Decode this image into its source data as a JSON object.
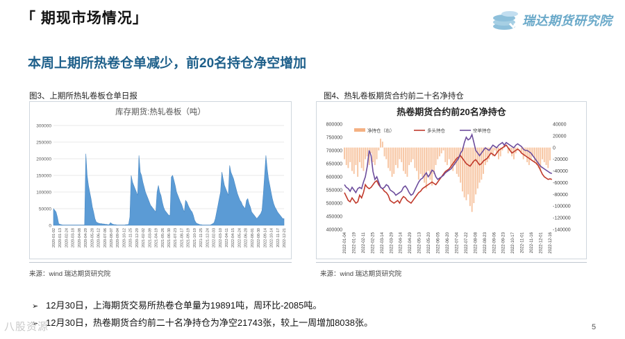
{
  "header": {
    "title": "「 期现市场情况」"
  },
  "logo": {
    "text": "瑞达期货研究院",
    "icon": "coin-stack-logo-icon"
  },
  "subtitle": "本周上期所热卷仓单减少，前20名持仓净空增加",
  "figure3": {
    "label": "图3、上期所热轧卷板仓单日报",
    "source": "来源：wind    瑞达期货研究院",
    "chart_data": {
      "type": "area",
      "title": "库存期货:热轧卷板（吨）",
      "ylim": [
        0,
        300000
      ],
      "yticks": [
        "300000",
        "250000",
        "200000",
        "150000",
        "100000",
        "50000",
        "0"
      ],
      "xticks": [
        "2020-01-02",
        "2020-01-13",
        "2020-02-24",
        "2020-03-18",
        "2020-04-08",
        "2020-04-29",
        "2020-05-28",
        "2020-06-12",
        "2020-07-06",
        "2020-08-07",
        "2020-09-04",
        "2020-10-12",
        "2020-11-25",
        "2020-12-29",
        "2021-02-02",
        "2021-03-09",
        "2021-04-19",
        "2021-05-26",
        "2021-06-30",
        "2021-07-23",
        "2021-08-17",
        "2021-09-19",
        "2021-10-19",
        "2021-11-25",
        "2021-12-24",
        "2022-02-03",
        "2022-03-10",
        "2022-04-11",
        "2022-04-15",
        "2022-05-24",
        "2022-06-28",
        "2022-08-01",
        "2022-08-30",
        "2022-09-14",
        "2022-10-14",
        "2022-11-17",
        "2022-12-21"
      ],
      "color": "#5b9bd5",
      "values": [
        50000,
        45000,
        40000,
        25000,
        5000,
        3000,
        2000,
        1000,
        1000,
        1000,
        1000,
        1000,
        1000,
        1000,
        1000,
        1000,
        1000,
        1000,
        1000,
        1000,
        1000,
        1000,
        1000,
        1000,
        1000,
        215000,
        150000,
        120000,
        100000,
        80000,
        55000,
        40000,
        20000,
        10000,
        8000,
        6000,
        5000,
        5000,
        4000,
        4000,
        3000,
        3000,
        2000,
        2000,
        8000,
        5000,
        3000,
        2000,
        2000,
        1000,
        1000,
        1000,
        1000,
        1000,
        1000,
        1000,
        2000,
        2000,
        3000,
        25000,
        150000,
        130000,
        120000,
        110000,
        100000,
        90000,
        210000,
        160000,
        150000,
        130000,
        115000,
        100000,
        90000,
        80000,
        70000,
        60000,
        55000,
        50000,
        45000,
        40000,
        100000,
        120000,
        100000,
        90000,
        70000,
        55000,
        45000,
        40000,
        35000,
        30000,
        30000,
        145000,
        150000,
        135000,
        120000,
        100000,
        90000,
        80000,
        70000,
        62000,
        50000,
        40000,
        75000,
        70000,
        60000,
        52000,
        45000,
        40000,
        30000,
        15000,
        8000,
        5000,
        4000,
        2000,
        2000,
        1000,
        1000,
        1000,
        1000,
        1000,
        1000,
        1000,
        3000,
        5000,
        8000,
        20000,
        40000,
        60000,
        80000,
        100000,
        160000,
        140000,
        120000,
        110000,
        100000,
        90000,
        180000,
        160000,
        150000,
        140000,
        125000,
        110000,
        95000,
        85000,
        75000,
        70000,
        60000,
        55000,
        50000,
        75000,
        80000,
        65000,
        55000,
        40000,
        35000,
        30000,
        25000,
        20000,
        25000,
        30000,
        35000,
        45000,
        95000,
        150000,
        210000,
        170000,
        140000,
        120000,
        100000,
        80000,
        65000,
        55000,
        48000,
        40000,
        35000,
        30000,
        25000,
        20000,
        20000
      ]
    }
  },
  "figure4": {
    "label": "图4、热轧卷板期货合约前二十名净持仓",
    "source": "来源：wind    瑞达期货研究院",
    "chart_data": {
      "type": "line",
      "title": "热卷期货合约前20名净持仓",
      "ylim_left": [
        400000,
        800000
      ],
      "ylim_right": [
        -140000,
        40000
      ],
      "yticks_left": [
        "800000",
        "750000",
        "700000",
        "650000",
        "600000",
        "550000",
        "500000",
        "450000",
        "400000"
      ],
      "yticks_right": [
        "40000",
        "20000",
        "0",
        "-20000",
        "-40000",
        "-60000",
        "-80000",
        "-100000",
        "-120000",
        "-140000"
      ],
      "xticks": [
        "2022-01-04",
        "2022-01-19",
        "2022-02-11",
        "2022-02-25",
        "2022-03-14",
        "2022-03-29",
        "2022-04-14",
        "2022-04-29",
        "2022-05-13",
        "2022-05-20",
        "2022-06-05",
        "2022-06-20",
        "2022-07-04",
        "2022-07-22",
        "2022-08-08",
        "2022-08-23",
        "2022-09-06",
        "2022-09-23",
        "2022-10-17",
        "2022-11-01",
        "2022-11-16",
        "2022-12-01",
        "2022-12-16"
      ],
      "legend": [
        "净持仓（右）",
        "多头持仓",
        "空单持仓"
      ],
      "series": [
        {
          "name": "净持仓（右）",
          "color": "#f4b183",
          "values": [
            -20000,
            -30000,
            -35000,
            -25000,
            -40000,
            -45000,
            -30000,
            -50000,
            -25000,
            -35000,
            -40000,
            -20000,
            -15000,
            -30000,
            -10000,
            -25000,
            -30000,
            -20000,
            -5000,
            15000,
            10000,
            -15000,
            -20000,
            -35000,
            -40000,
            -50000,
            -45000,
            -30000,
            -35000,
            -20000,
            -25000,
            -40000,
            -45000,
            -50000,
            -30000,
            -25000,
            -20000,
            -35000,
            -40000,
            -55000,
            -45000,
            -50000,
            -60000,
            -70000,
            -40000,
            -55000,
            -65000,
            -45000,
            -30000,
            -20000,
            -15000,
            -10000,
            -5000,
            -25000,
            -30000,
            -20000,
            -35000,
            -40000,
            -30000,
            -45000,
            -50000,
            -60000,
            -75000,
            -85000,
            -90000,
            -80000,
            -100000,
            -110000,
            -95000,
            -80000,
            -70000,
            -60000,
            -55000,
            -45000,
            -30000,
            -25000,
            -20000,
            -10000,
            -15000,
            -5000,
            -10000,
            -20000,
            -15000,
            -5000,
            5000,
            0,
            -10000,
            -5000,
            -15000,
            -20000,
            -10000,
            -5000,
            0,
            -10000,
            -20000,
            -15000,
            -25000,
            -30000,
            -20000,
            -15000,
            -25000,
            -30000,
            -35000,
            -40000,
            -20000,
            -25000,
            -30000,
            -35000,
            -22000
          ]
        },
        {
          "name": "多头持仓",
          "color": "#c0392b",
          "values": [
            540000,
            525000,
            510000,
            505000,
            520000,
            510000,
            500000,
            505000,
            530000,
            520000,
            540000,
            570000,
            560000,
            555000,
            560000,
            570000,
            580000,
            585000,
            570000,
            560000,
            555000,
            545000,
            540000,
            530000,
            510000,
            505000,
            500000,
            505000,
            510000,
            500000,
            515000,
            525000,
            520000,
            510000,
            505000,
            500000,
            510000,
            520000,
            530000,
            540000,
            545000,
            555000,
            560000,
            565000,
            570000,
            575000,
            580000,
            575000,
            570000,
            580000,
            590000,
            600000,
            610000,
            620000,
            625000,
            630000,
            640000,
            650000,
            660000,
            670000,
            675000,
            680000,
            670000,
            660000,
            650000,
            645000,
            640000,
            650000,
            660000,
            665000,
            655000,
            645000,
            650000,
            660000,
            665000,
            670000,
            680000,
            690000,
            685000,
            680000,
            690000,
            700000,
            705000,
            710000,
            715000,
            720000,
            710000,
            700000,
            690000,
            695000,
            700000,
            705000,
            700000,
            690000,
            685000,
            680000,
            675000,
            670000,
            665000,
            660000,
            655000,
            650000,
            640000,
            625000,
            610000,
            600000,
            595000,
            590000,
            592000,
            590000
          ]
        },
        {
          "name": "空单持仓",
          "color": "#6c4c9c",
          "values": [
            570000,
            560000,
            555000,
            545000,
            560000,
            550000,
            540000,
            555000,
            560000,
            555000,
            580000,
            600000,
            640000,
            700000,
            680000,
            620000,
            590000,
            600000,
            580000,
            560000,
            555000,
            560000,
            570000,
            565000,
            550000,
            545000,
            540000,
            530000,
            535000,
            540000,
            545000,
            560000,
            565000,
            555000,
            540000,
            530000,
            535000,
            550000,
            565000,
            580000,
            590000,
            595000,
            605000,
            615000,
            600000,
            610000,
            625000,
            620000,
            600000,
            590000,
            595000,
            600000,
            605000,
            615000,
            620000,
            625000,
            630000,
            640000,
            650000,
            660000,
            670000,
            690000,
            700000,
            730000,
            750000,
            740000,
            745000,
            760000,
            730000,
            700000,
            690000,
            680000,
            690000,
            700000,
            710000,
            705000,
            700000,
            710000,
            720000,
            715000,
            710000,
            720000,
            725000,
            730000,
            720000,
            730000,
            725000,
            720000,
            715000,
            710000,
            720000,
            725000,
            720000,
            715000,
            705000,
            700000,
            700000,
            695000,
            690000,
            680000,
            670000,
            660000,
            650000,
            640000,
            635000,
            630000,
            625000,
            620000,
            615000,
            612000
          ]
        }
      ]
    }
  },
  "bullets": [
    "12月30日，上海期货交易所热卷仓单量为19891吨，周环比-2085吨。",
    "12月30日，热卷期货合约前二十名净持仓为净空21743张，较上一周增加8038张。"
  ],
  "bullet_icon": "arrow-bullet-icon",
  "page_number": "5",
  "watermark": "八股资源"
}
